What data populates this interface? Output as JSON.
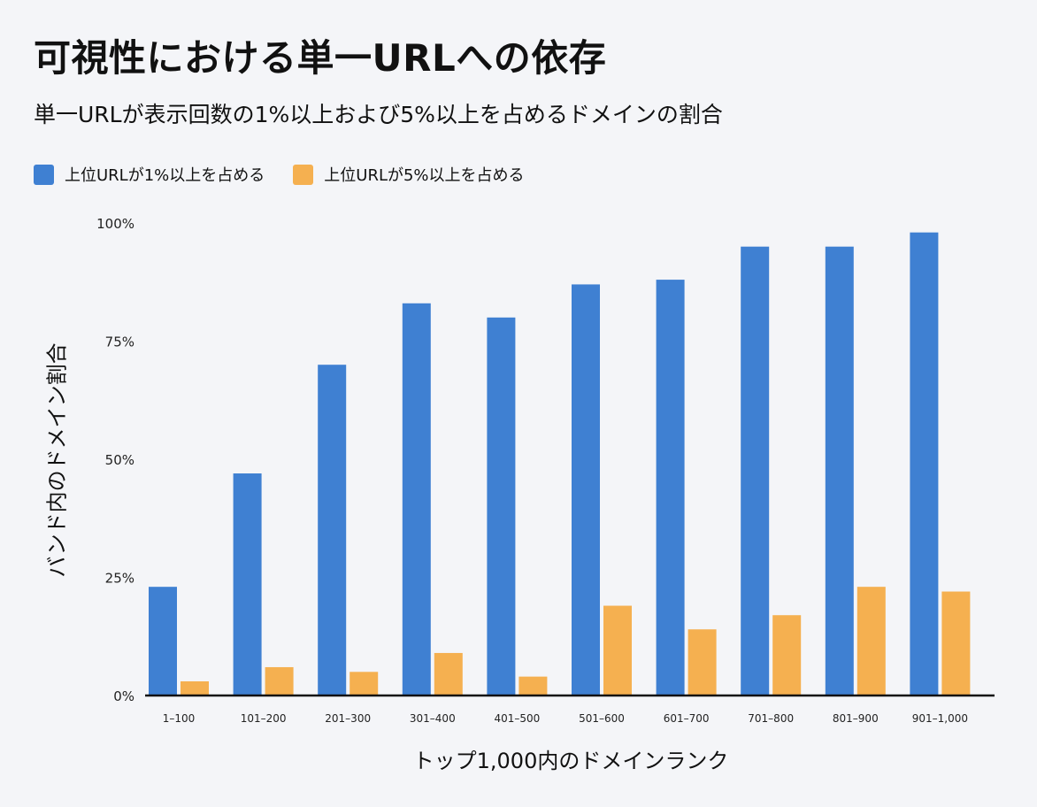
{
  "chart_data": {
    "type": "bar",
    "title": "可視性における単一URLへの依存",
    "subtitle": "単一URLが表示回数の1%以上および5%以上を占めるドメインの割合",
    "xlabel": "トップ1,000内のドメインランク",
    "ylabel": "バンド内のドメイン割合",
    "categories": [
      "1–100",
      "101–200",
      "201–300",
      "301–400",
      "401–500",
      "501–600",
      "601–700",
      "701–800",
      "801–900",
      "901–1,000"
    ],
    "series": [
      {
        "name": "上位URLが1%以上を占める",
        "color": "#3f80d2",
        "values": [
          23,
          47,
          70,
          83,
          80,
          87,
          88,
          95,
          95,
          98
        ]
      },
      {
        "name": "上位URLが5%以上を占める",
        "color": "#f5b050",
        "values": [
          3,
          6,
          5,
          9,
          4,
          19,
          14,
          17,
          23,
          22
        ]
      }
    ],
    "ylim": [
      0,
      100
    ],
    "yticks": [
      "0%",
      "25%",
      "50%",
      "75%",
      "100%"
    ],
    "ytick_values": [
      0,
      25,
      50,
      75,
      100
    ],
    "grid": false,
    "legend_position": "top-left"
  }
}
